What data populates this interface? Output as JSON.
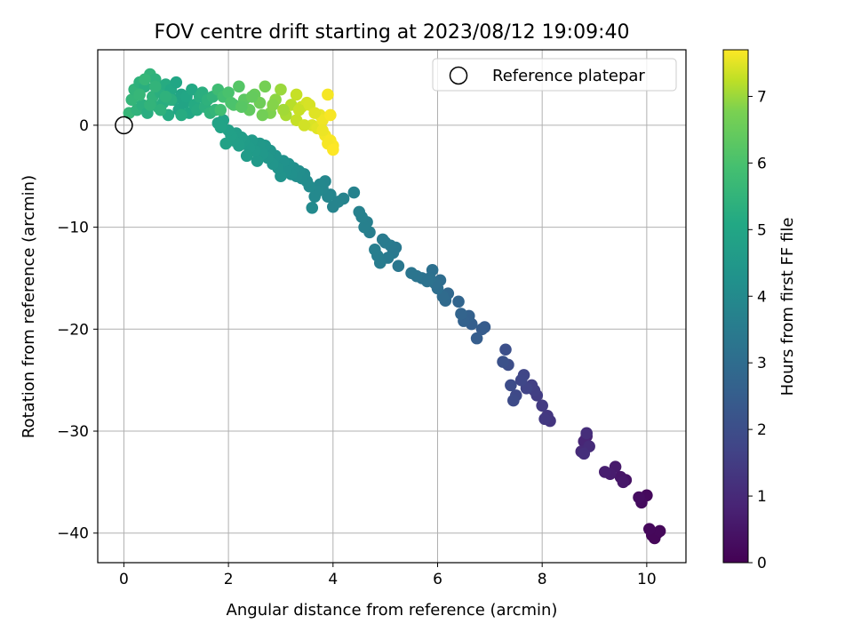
{
  "chart_data": {
    "type": "scatter",
    "title": "FOV centre drift starting at 2023/08/12 19:09:40",
    "xlabel": "Angular distance from reference (arcmin)",
    "ylabel": "Rotation from reference (arcmin)",
    "xlim": [
      -0.5,
      10.75
    ],
    "ylim": [
      -42.9,
      7.4
    ],
    "xticks": [
      0,
      2,
      4,
      6,
      8,
      10
    ],
    "yticks": [
      0,
      -10,
      -20,
      -30,
      -40
    ],
    "grid": true,
    "legend": {
      "placement": "top-right",
      "entries": [
        "Reference platepar"
      ]
    },
    "reference_point": {
      "x": 0,
      "y": 0,
      "label": "Reference platepar"
    },
    "colorbar": {
      "label": "Hours from first FF file",
      "range": [
        0,
        7.7
      ],
      "ticks": [
        0,
        1,
        2,
        3,
        4,
        5,
        6,
        7
      ],
      "colormap": "viridis"
    },
    "series": [
      {
        "x": [
          10.2,
          10.1,
          10.15,
          10.25,
          10.05,
          10.0,
          9.9,
          9.85,
          9.6,
          9.5,
          9.55,
          9.4,
          9.3,
          9.2,
          8.85,
          8.8,
          8.75,
          8.9,
          8.85,
          8.8,
          8.15,
          8.1,
          8.05,
          8.0,
          7.9,
          7.85,
          7.8,
          7.7,
          7.65,
          7.6,
          7.5,
          7.45,
          7.4,
          7.35,
          7.3,
          7.25,
          6.9,
          6.85,
          6.75,
          6.65,
          6.6,
          6.5,
          6.45,
          6.4,
          6.2,
          6.15,
          6.1,
          6.05,
          6.0,
          5.95,
          5.9,
          5.85,
          5.8,
          5.7,
          5.6,
          5.5,
          5.25,
          5.2,
          5.15,
          5.1,
          5.05,
          5.0,
          4.95,
          4.9,
          4.85,
          4.8,
          4.7,
          4.65,
          4.6,
          4.55,
          4.5
        ],
        "y": [
          -40.0,
          -40.2,
          -40.5,
          -39.8,
          -39.6,
          -36.3,
          -37.0,
          -36.5,
          -34.8,
          -34.5,
          -35.0,
          -33.5,
          -34.2,
          -34.0,
          -30.5,
          -31.0,
          -32.0,
          -31.5,
          -30.2,
          -32.2,
          -29.0,
          -28.5,
          -28.8,
          -27.5,
          -26.5,
          -26.0,
          -25.5,
          -25.8,
          -24.5,
          -25.0,
          -26.5,
          -27.0,
          -25.5,
          -23.5,
          -22.0,
          -23.2,
          -19.8,
          -20.0,
          -20.9,
          -19.5,
          -18.7,
          -19.2,
          -18.5,
          -17.3,
          -16.5,
          -17.2,
          -16.8,
          -15.2,
          -16.0,
          -15.5,
          -14.2,
          -15.0,
          -15.3,
          -15.0,
          -14.8,
          -14.5,
          -13.8,
          -12.0,
          -12.5,
          -11.8,
          -13.0,
          -11.5,
          -11.2,
          -13.5,
          -12.8,
          -12.2,
          -10.5,
          -9.5,
          -10.0,
          -9.0,
          -8.5
        ]
      },
      {
        "x": [
          4.4,
          4.2,
          4.1,
          4.0,
          3.95,
          3.9,
          3.85,
          3.8,
          3.75,
          3.7,
          3.65,
          3.6,
          3.55,
          3.5,
          3.45,
          3.4,
          3.35,
          3.3,
          3.25,
          3.2,
          3.15,
          3.1,
          3.05,
          3.0,
          2.95,
          2.9,
          2.85,
          2.8,
          2.75,
          2.7,
          2.65,
          2.6,
          2.55,
          2.5,
          2.45,
          2.4,
          2.35,
          2.3,
          2.25,
          2.2,
          2.15,
          2.1,
          2.05,
          2.0,
          1.95,
          1.9,
          1.85,
          1.8
        ],
        "y": [
          -6.6,
          -7.2,
          -7.5,
          -8.0,
          -6.8,
          -7.0,
          -5.5,
          -6.2,
          -5.8,
          -6.5,
          -7.0,
          -8.1,
          -6.0,
          -5.5,
          -4.8,
          -5.2,
          -4.5,
          -5.0,
          -4.2,
          -4.8,
          -3.8,
          -4.5,
          -3.5,
          -5.0,
          -4.2,
          -3.0,
          -3.8,
          -2.5,
          -3.2,
          -2.0,
          -2.8,
          -1.8,
          -3.5,
          -2.5,
          -1.5,
          -2.2,
          -3.0,
          -1.5,
          -1.2,
          -2.0,
          -0.8,
          -1.5,
          -1.0,
          -0.5,
          -1.8,
          0.5,
          -0.2,
          0.2
        ]
      },
      {
        "x": [
          0.1,
          0.15,
          0.2,
          0.25,
          0.3,
          0.35,
          0.4,
          0.45,
          0.5,
          0.55,
          0.6,
          0.65,
          0.7,
          0.75,
          0.8,
          0.85,
          0.9,
          0.95,
          1.0,
          1.05,
          1.1,
          1.15,
          1.2,
          1.25,
          1.3,
          1.35,
          1.4,
          1.45,
          1.5,
          1.55,
          1.6,
          1.65,
          1.7,
          1.75,
          0.3,
          0.5,
          0.7,
          0.9,
          1.1,
          0.4,
          0.6,
          0.8
        ],
        "y": [
          1.2,
          2.5,
          3.5,
          1.5,
          4.2,
          2.0,
          3.8,
          1.2,
          5.0,
          2.8,
          4.5,
          1.8,
          3.2,
          2.2,
          4.0,
          1.0,
          3.5,
          2.5,
          4.2,
          1.5,
          3.0,
          2.2,
          2.8,
          1.2,
          3.5,
          2.0,
          1.5,
          2.8,
          3.2,
          1.8,
          2.5,
          1.2,
          2.8,
          1.5,
          3.0,
          2.0,
          1.5,
          2.5,
          1.0,
          4.5,
          3.8,
          2.8
        ]
      },
      {
        "x": [
          1.8,
          1.9,
          2.0,
          2.1,
          2.2,
          2.3,
          2.4,
          2.5,
          2.6,
          2.7,
          2.8,
          2.9,
          3.0,
          3.1,
          3.2,
          3.3,
          1.85,
          2.05,
          2.25,
          2.45,
          2.65,
          2.85,
          3.05
        ],
        "y": [
          3.5,
          2.8,
          3.2,
          2.0,
          3.8,
          2.5,
          1.5,
          3.0,
          2.2,
          3.8,
          1.2,
          2.5,
          3.5,
          1.0,
          2.0,
          3.0,
          1.5,
          2.2,
          1.8,
          2.8,
          1.0,
          2.0,
          1.5
        ]
      },
      {
        "x": [
          3.3,
          3.4,
          3.5,
          3.6,
          3.7,
          3.75,
          3.8,
          3.85,
          3.9,
          3.95,
          4.0,
          3.35,
          3.45,
          3.55,
          3.65,
          3.9,
          3.95,
          4.0,
          3.8
        ],
        "y": [
          0.5,
          1.8,
          2.2,
          0.0,
          -0.3,
          1.0,
          0.5,
          -1.0,
          3.0,
          -1.5,
          -2.0,
          1.5,
          0.0,
          2.0,
          1.2,
          -1.8,
          1.0,
          -2.4,
          -0.5
        ]
      }
    ],
    "series_hours": [
      [
        0.1,
        0.12,
        0.14,
        0.16,
        0.18,
        0.2,
        0.25,
        0.3,
        0.4,
        0.5,
        0.55,
        0.6,
        0.65,
        0.7,
        0.8,
        0.9,
        1.0,
        1.05,
        1.1,
        1.15,
        1.3,
        1.35,
        1.4,
        1.45,
        1.5,
        1.55,
        1.6,
        1.7,
        1.75,
        1.8,
        1.85,
        1.9,
        1.95,
        2.0,
        2.05,
        2.1,
        2.4,
        2.45,
        2.5,
        2.55,
        2.6,
        2.65,
        2.7,
        2.75,
        2.85,
        2.9,
        2.95,
        3.0,
        3.05,
        3.1,
        3.12,
        3.15,
        3.18,
        3.2,
        3.25,
        3.28,
        3.35,
        3.38,
        3.4,
        3.42,
        3.45,
        3.48,
        3.5,
        3.52,
        3.55,
        3.58,
        3.6,
        3.62,
        3.65,
        3.68,
        3.7
      ],
      [
        3.72,
        3.75,
        3.78,
        3.8,
        3.82,
        3.85,
        3.88,
        3.9,
        3.92,
        3.95,
        3.98,
        4.0,
        4.02,
        4.05,
        4.08,
        4.1,
        4.12,
        4.15,
        4.18,
        4.2,
        4.22,
        4.25,
        4.28,
        4.3,
        4.32,
        4.35,
        4.38,
        4.4,
        4.42,
        4.45,
        4.48,
        4.5,
        4.52,
        4.55,
        4.58,
        4.6,
        4.62,
        4.65,
        4.68,
        4.7,
        4.72,
        4.75,
        4.78,
        4.8,
        4.82,
        4.85,
        4.88,
        4.9
      ],
      [
        5.6,
        5.55,
        5.5,
        5.45,
        5.4,
        5.35,
        5.3,
        5.25,
        5.5,
        5.45,
        5.4,
        5.35,
        5.3,
        5.25,
        5.2,
        5.15,
        5.1,
        5.05,
        5.0,
        4.98,
        4.95,
        4.95,
        5.0,
        5.05,
        5.1,
        5.15,
        5.2,
        5.25,
        5.3,
        5.35,
        5.4,
        5.45,
        5.5,
        5.55,
        5.6,
        5.5,
        5.4,
        5.3,
        5.2,
        5.6,
        5.5,
        5.4
      ],
      [
        5.8,
        5.9,
        6.0,
        6.1,
        6.2,
        6.3,
        6.4,
        6.5,
        6.6,
        6.7,
        6.8,
        6.9,
        7.0,
        7.1,
        7.2,
        7.3,
        5.85,
        6.05,
        6.25,
        6.45,
        6.65,
        6.85,
        7.05
      ],
      [
        7.3,
        7.35,
        7.4,
        7.45,
        7.5,
        7.55,
        7.6,
        7.62,
        7.64,
        7.66,
        7.68,
        7.32,
        7.38,
        7.42,
        7.48,
        7.65,
        7.66,
        7.7,
        7.58
      ]
    ]
  }
}
